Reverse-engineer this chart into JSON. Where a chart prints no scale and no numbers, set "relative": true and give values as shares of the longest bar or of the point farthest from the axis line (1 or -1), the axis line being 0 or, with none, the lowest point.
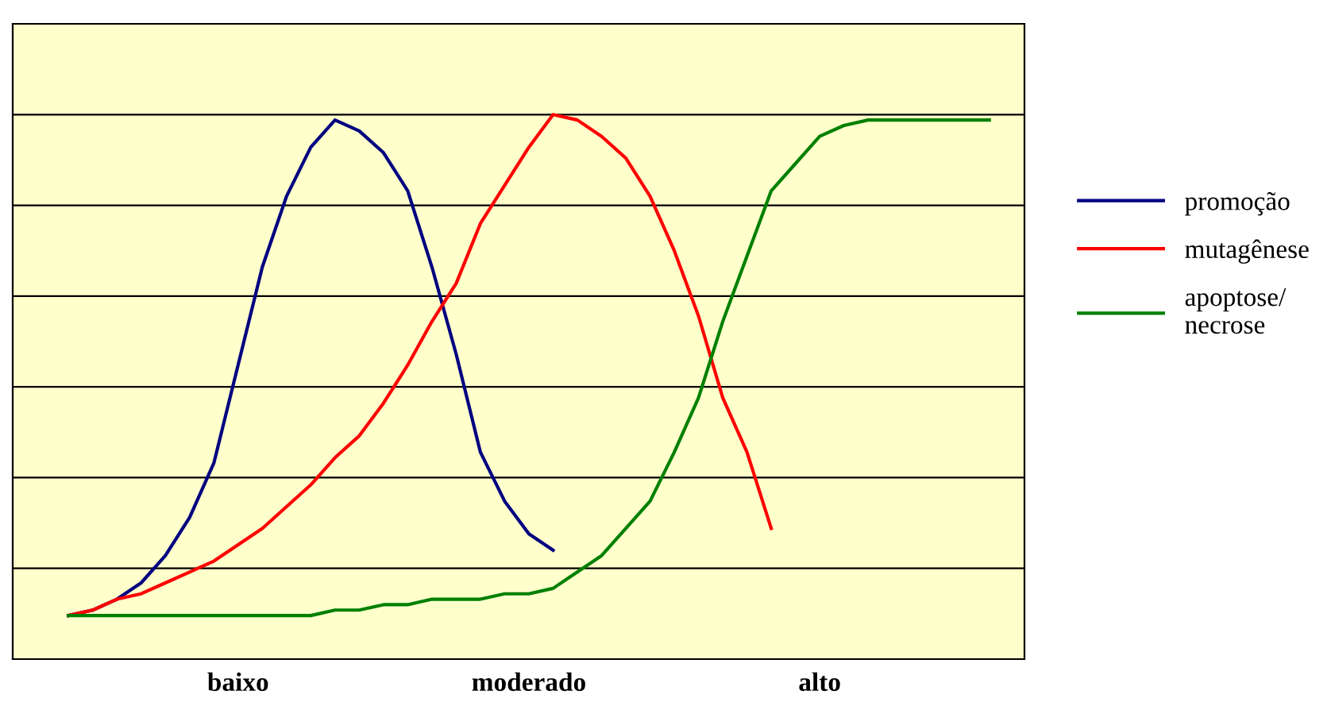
{
  "chart_data": {
    "type": "line",
    "relative": true,
    "categories": [
      null,
      null,
      null,
      null,
      null,
      null,
      null,
      "baixo",
      null,
      null,
      null,
      null,
      null,
      null,
      null,
      null,
      null,
      null,
      null,
      "moderado",
      null,
      null,
      null,
      null,
      null,
      null,
      null,
      null,
      null,
      null,
      null,
      "alto",
      null,
      null,
      null,
      null,
      null,
      null,
      null
    ],
    "grid": "y",
    "legend": "right",
    "marker": "none",
    "line_style": "solid",
    "series": [
      {
        "name": "promoção",
        "color": "#000080",
        "values": [
          0.08,
          0.09,
          0.11,
          0.14,
          0.19,
          0.26,
          0.36,
          0.54,
          0.72,
          0.85,
          0.94,
          0.99,
          0.97,
          0.93,
          0.86,
          0.72,
          0.56,
          0.38,
          0.29,
          0.23,
          0.2,
          null,
          null,
          null,
          null,
          null,
          null,
          null,
          null,
          null,
          null,
          null,
          null,
          null,
          null,
          null,
          null,
          null,
          null
        ]
      },
      {
        "name": "mutagênese",
        "color": "#ff0000",
        "values": [
          0.08,
          0.09,
          0.11,
          0.12,
          0.14,
          0.16,
          0.18,
          0.21,
          0.24,
          0.28,
          0.32,
          0.37,
          0.41,
          0.47,
          0.54,
          0.62,
          0.69,
          0.8,
          0.87,
          0.94,
          1.0,
          0.99,
          0.96,
          0.92,
          0.85,
          0.75,
          0.63,
          0.48,
          0.38,
          0.24,
          null,
          null,
          null,
          null,
          null,
          null,
          null,
          null,
          null
        ]
      },
      {
        "name": "apoptose/\nnecrose",
        "color": "#008000",
        "values": [
          0.08,
          0.08,
          0.08,
          0.08,
          0.08,
          0.08,
          0.08,
          0.08,
          0.08,
          0.08,
          0.08,
          0.09,
          0.09,
          0.1,
          0.1,
          0.11,
          0.11,
          0.11,
          0.12,
          0.12,
          0.13,
          0.16,
          0.19,
          0.24,
          0.29,
          0.38,
          0.48,
          0.62,
          0.74,
          0.86,
          0.91,
          0.96,
          0.98,
          0.99,
          0.99,
          0.99,
          0.99,
          0.99,
          0.99
        ]
      }
    ]
  }
}
